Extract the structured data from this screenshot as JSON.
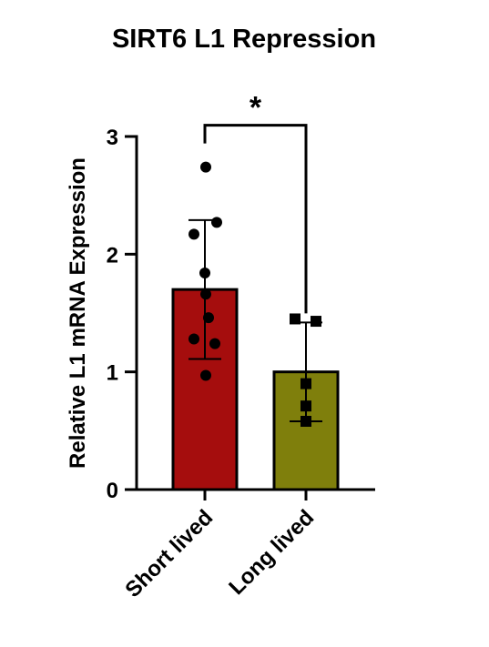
{
  "chart_data": {
    "type": "bar",
    "title": "SIRT6 L1 Repression",
    "y_label": "Relative L1 mRNA Expression",
    "categories": [
      "Short lived",
      "Long lived"
    ],
    "values": [
      1.7,
      1.0
    ],
    "errors": [
      0.59,
      0.42
    ],
    "colors": [
      "#a50d0d",
      "#7f7f0c"
    ],
    "points": [
      [
        2.74,
        2.27,
        2.17,
        1.84,
        1.66,
        1.46,
        1.28,
        1.24,
        0.97
      ],
      [
        1.45,
        1.43,
        0.9,
        0.71,
        0.58
      ]
    ],
    "markers": [
      "circle",
      "square"
    ],
    "annotation": "*",
    "ylim": [
      0,
      3
    ],
    "yticks": [
      0,
      1,
      2,
      3
    ]
  }
}
